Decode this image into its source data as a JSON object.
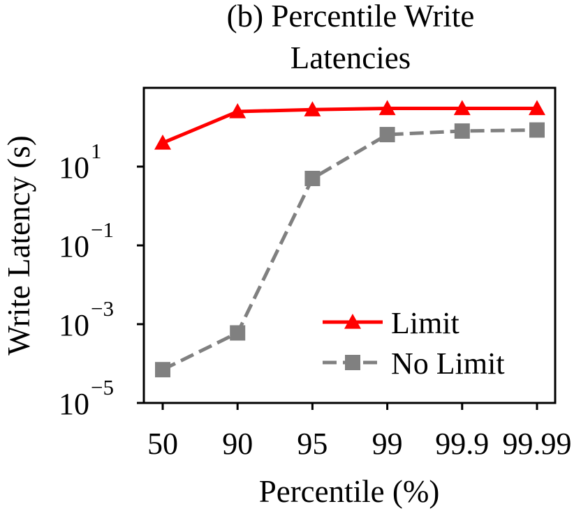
{
  "chart_data": {
    "type": "line",
    "title_line1": "(b) Percentile Write",
    "title_line2": "Latencies",
    "xlabel": "Percentile (%)",
    "ylabel": "Write Latency (s)",
    "y_scale": "log",
    "ylim": [
      1e-05,
      1000
    ],
    "categories": [
      "50",
      "90",
      "95",
      "99",
      "99.9",
      "99.99"
    ],
    "y_ticks": [
      {
        "value": 10,
        "base": "10",
        "exp": "1"
      },
      {
        "value": 0.1,
        "base": "10",
        "exp": "−1"
      },
      {
        "value": 0.001,
        "base": "10",
        "exp": "−3"
      },
      {
        "value": 1e-05,
        "base": "10",
        "exp": "−5"
      }
    ],
    "legend_position": "lower-right",
    "grid": false,
    "series": [
      {
        "name": "Limit",
        "color": "#ff0000",
        "marker": "triangle",
        "linestyle": "solid",
        "values": [
          40,
          250,
          280,
          300,
          300,
          300
        ]
      },
      {
        "name": "No Limit",
        "color": "#808080",
        "marker": "square",
        "linestyle": "dashed",
        "values": [
          7e-05,
          0.0006,
          5,
          65,
          80,
          85
        ]
      }
    ]
  }
}
